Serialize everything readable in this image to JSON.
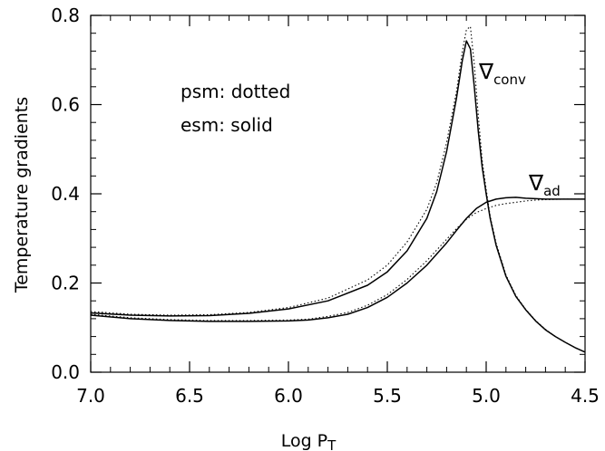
{
  "chart_data": {
    "type": "line",
    "xlabel": "Log P",
    "xlabel_sub": "T",
    "ylabel": "Temperature gradients",
    "xlim": [
      7.0,
      4.5
    ],
    "ylim": [
      0.0,
      0.8
    ],
    "x_ticks": [
      "7.0",
      "6.5",
      "6.0",
      "5.5",
      "5.0",
      "4.5"
    ],
    "y_ticks": [
      "0.0",
      "0.2",
      "0.4",
      "0.6",
      "0.8"
    ],
    "grid": false,
    "annotations": {
      "legend_psm": "psm: dotted",
      "legend_esm": "esm: solid",
      "conv_symbol": "∇",
      "conv_sub": "conv",
      "ad_symbol": "∇",
      "ad_sub": "ad"
    },
    "series": [
      {
        "style": "solid",
        "x": [
          7.0,
          6.8,
          6.6,
          6.4,
          6.2,
          6.0,
          5.8,
          5.6,
          5.5,
          5.4,
          5.3,
          5.25,
          5.2,
          5.15,
          5.12,
          5.1,
          5.08,
          5.06,
          5.04,
          5.02,
          5.0,
          4.98,
          4.95,
          4.9,
          4.85,
          4.8,
          4.75,
          4.7,
          4.65,
          4.6,
          4.55,
          4.5
        ],
        "values": [
          0.133,
          0.128,
          0.126,
          0.127,
          0.132,
          0.142,
          0.16,
          0.195,
          0.225,
          0.272,
          0.345,
          0.405,
          0.495,
          0.615,
          0.7,
          0.743,
          0.725,
          0.64,
          0.54,
          0.46,
          0.4,
          0.345,
          0.285,
          0.215,
          0.17,
          0.14,
          0.115,
          0.095,
          0.08,
          0.067,
          0.055,
          0.045
        ]
      },
      {
        "style": "dotted",
        "x": [
          7.0,
          6.8,
          6.6,
          6.4,
          6.2,
          6.0,
          5.8,
          5.6,
          5.5,
          5.4,
          5.3,
          5.25,
          5.2,
          5.15,
          5.12,
          5.1,
          5.08,
          5.06,
          5.04,
          5.02,
          5.0,
          4.98,
          4.95,
          4.9,
          4.85,
          4.8,
          4.75,
          4.7,
          4.65,
          4.6,
          4.55,
          4.5
        ],
        "values": [
          0.136,
          0.13,
          0.128,
          0.129,
          0.134,
          0.145,
          0.166,
          0.207,
          0.24,
          0.292,
          0.365,
          0.425,
          0.515,
          0.63,
          0.72,
          0.768,
          0.775,
          0.69,
          0.575,
          0.475,
          0.41,
          0.35,
          0.29,
          0.218,
          0.172,
          0.141,
          0.116,
          0.096,
          0.08,
          0.067,
          0.055,
          0.045
        ]
      },
      {
        "style": "solid",
        "x": [
          7.0,
          6.8,
          6.6,
          6.4,
          6.2,
          6.0,
          5.9,
          5.8,
          5.7,
          5.6,
          5.5,
          5.4,
          5.3,
          5.2,
          5.15,
          5.1,
          5.05,
          5.0,
          4.95,
          4.9,
          4.85,
          4.8,
          4.75,
          4.7,
          4.6,
          4.5
        ],
        "values": [
          0.128,
          0.12,
          0.116,
          0.114,
          0.114,
          0.115,
          0.117,
          0.122,
          0.13,
          0.145,
          0.168,
          0.2,
          0.24,
          0.29,
          0.318,
          0.345,
          0.367,
          0.381,
          0.388,
          0.391,
          0.392,
          0.39,
          0.389,
          0.388,
          0.388,
          0.388
        ]
      },
      {
        "style": "dotted",
        "x": [
          7.0,
          6.8,
          6.6,
          6.4,
          6.2,
          6.0,
          5.9,
          5.8,
          5.7,
          5.6,
          5.5,
          5.4,
          5.3,
          5.2,
          5.15,
          5.1,
          5.05,
          5.0,
          4.95,
          4.9,
          4.85,
          4.8,
          4.75,
          4.7,
          4.6,
          4.5
        ],
        "values": [
          0.13,
          0.122,
          0.118,
          0.116,
          0.116,
          0.117,
          0.119,
          0.125,
          0.134,
          0.15,
          0.174,
          0.208,
          0.25,
          0.298,
          0.322,
          0.343,
          0.358,
          0.367,
          0.374,
          0.378,
          0.381,
          0.384,
          0.386,
          0.387,
          0.388,
          0.388
        ]
      }
    ]
  }
}
